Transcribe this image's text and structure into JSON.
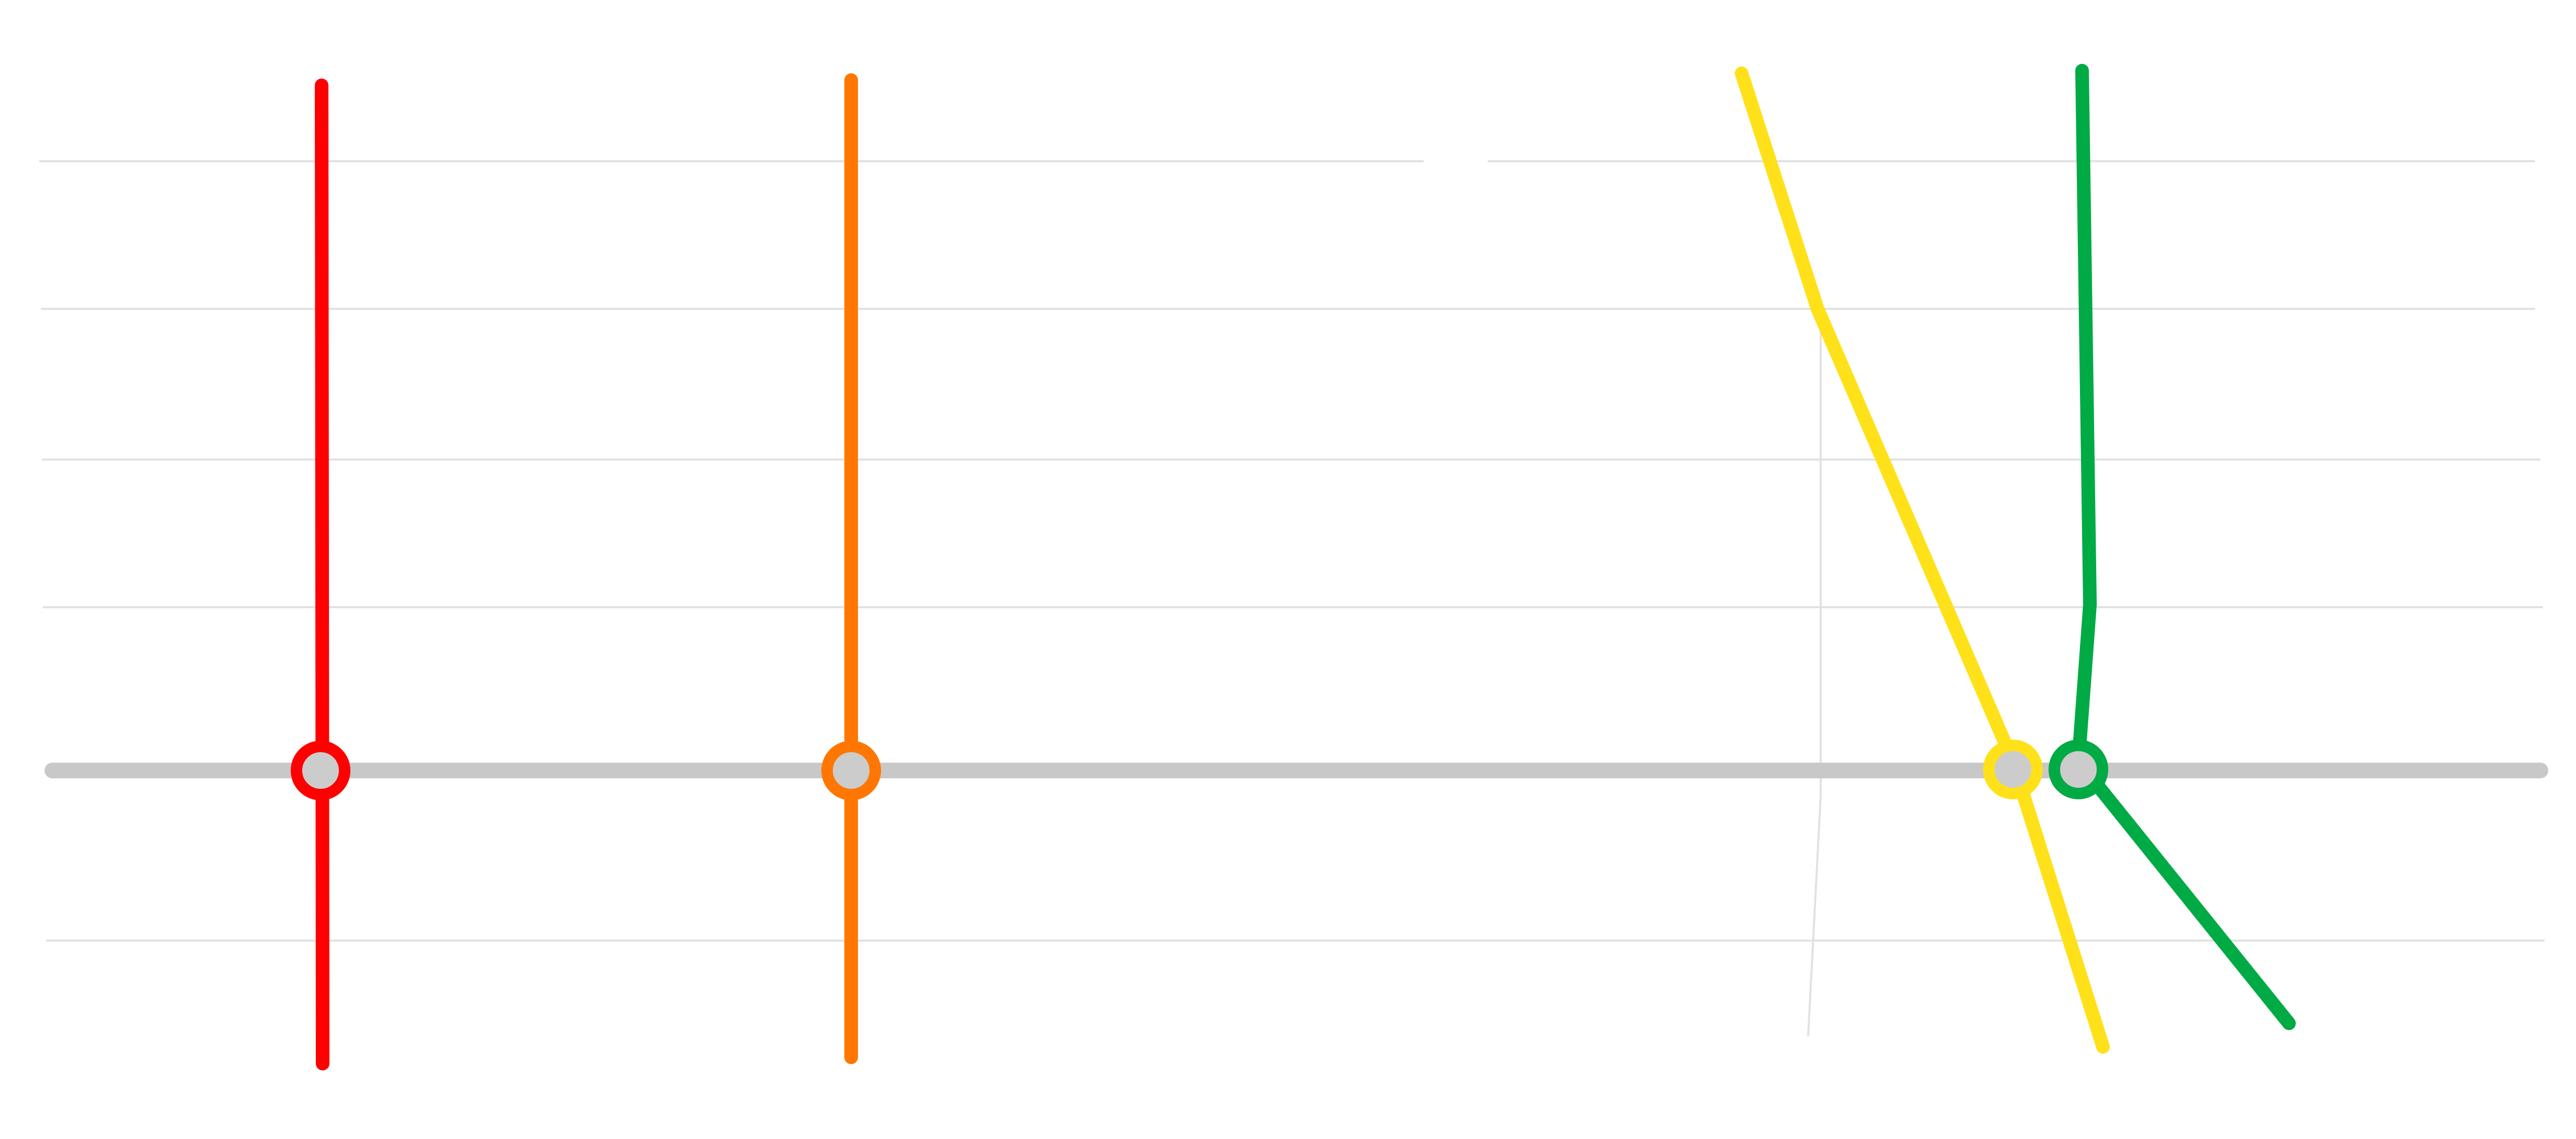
{
  "diagram": {
    "type": "transit-line-map",
    "trunk_line": {
      "color": "#c8c8c8"
    },
    "routes": [
      {
        "id": "red",
        "color": "#ff0000"
      },
      {
        "id": "orange",
        "color": "#ff7700"
      },
      {
        "id": "yellow",
        "color": "#ffe11a"
      },
      {
        "id": "green",
        "color": "#00aa44"
      }
    ],
    "stations": [
      {
        "route": "red",
        "fill": "#cccccc"
      },
      {
        "route": "orange",
        "fill": "#cccccc"
      },
      {
        "route": "yellow",
        "fill": "#cccccc"
      },
      {
        "route": "green",
        "fill": "#cccccc"
      }
    ],
    "gridline_color": "#e2e2e2"
  }
}
